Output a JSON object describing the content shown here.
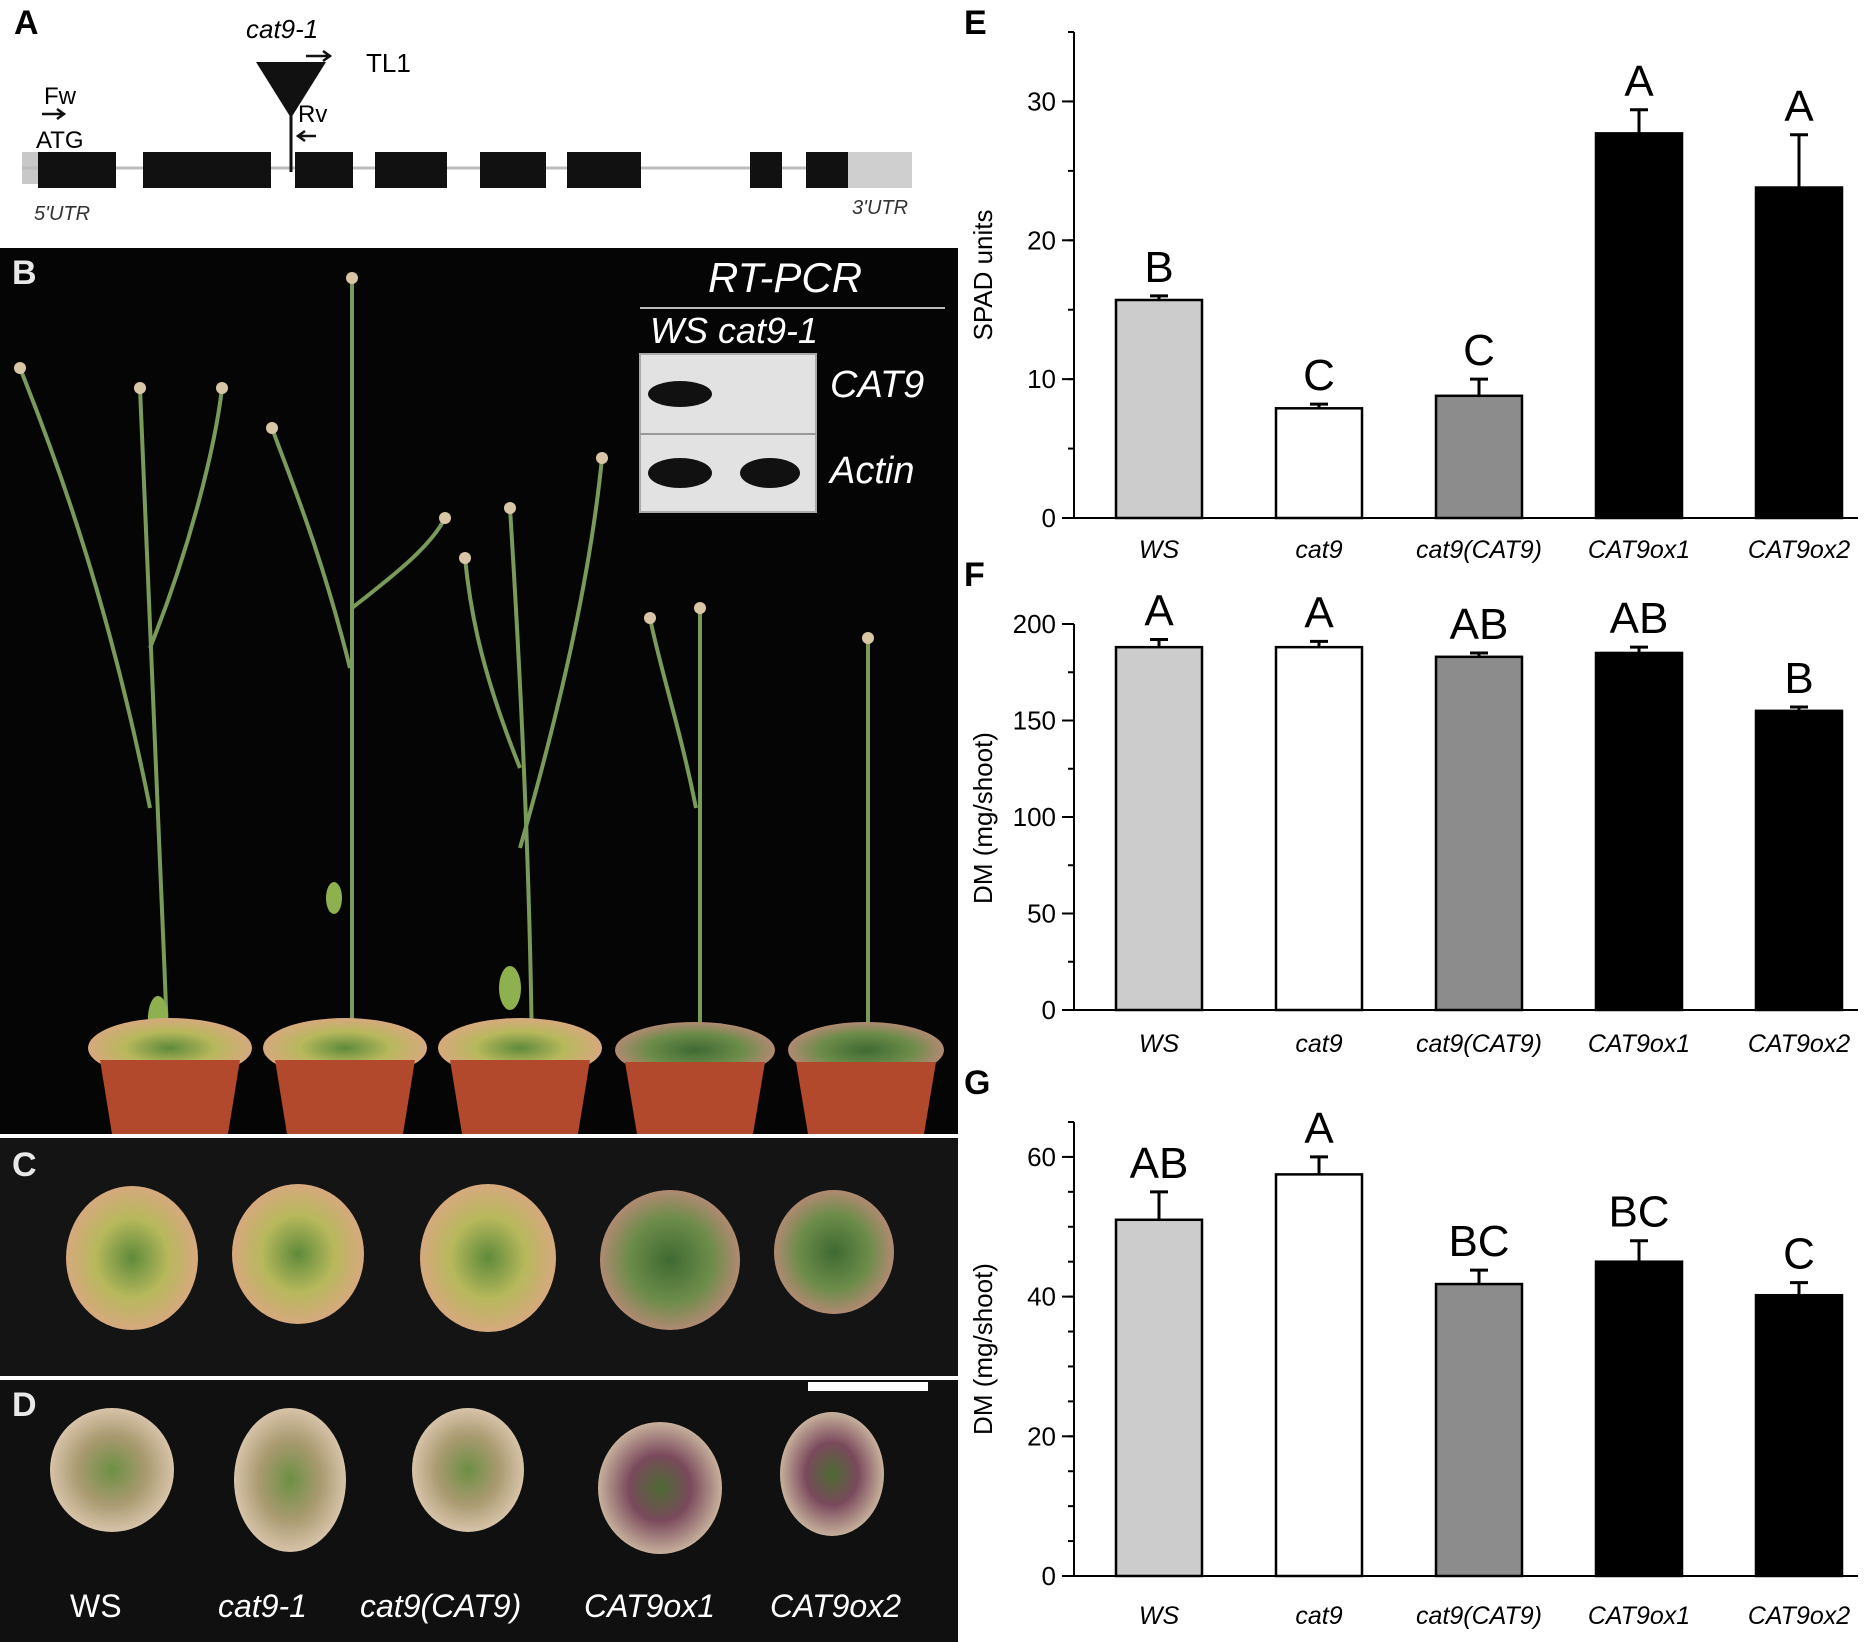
{
  "panels": {
    "A": "A",
    "B": "B",
    "C": "C",
    "D": "D",
    "E": "E",
    "F": "F",
    "G": "G"
  },
  "gene_model": {
    "insertion_label": "cat9-1",
    "tl1_label": "TL1",
    "fw_label": "Fw",
    "atg_label": "ATG",
    "rv_label": "Rv",
    "utr5_label": "5'UTR",
    "utr3_label": "3'UTR"
  },
  "rt_pcr": {
    "title": "RT-PCR",
    "lanes_label": "WS cat9-1",
    "rows": [
      "CAT9",
      "Actin"
    ],
    "bands": [
      [
        1,
        0
      ],
      [
        1,
        1
      ]
    ]
  },
  "genotype_labels": [
    "WS",
    "cat9-1",
    "cat9(CAT9)",
    "CAT9ox1",
    "CAT9ox2"
  ],
  "colors": {
    "WS": "#cccccc",
    "cat9": "#ffffff",
    "cat9(CAT9)": "#8c8c8c",
    "CAT9ox1": "#000000",
    "CAT9ox2": "#000000"
  },
  "chart_data": [
    {
      "panel": "E",
      "type": "bar",
      "categories": [
        "WS",
        "cat9",
        "cat9(CAT9)",
        "CAT9ox1",
        "CAT9ox2"
      ],
      "values": [
        15.7,
        7.9,
        8.8,
        27.7,
        23.8
      ],
      "errors": [
        0.3,
        0.3,
        1.2,
        1.7,
        3.8
      ],
      "significance": [
        "B",
        "C",
        "C",
        "A",
        "A"
      ],
      "ylabel": "SPAD units",
      "ylim": [
        0,
        35
      ],
      "yticks": [
        0,
        10,
        20,
        30
      ],
      "minor_step": 5
    },
    {
      "panel": "F",
      "type": "bar",
      "categories": [
        "WS",
        "cat9",
        "cat9(CAT9)",
        "CAT9ox1",
        "CAT9ox2"
      ],
      "values": [
        188,
        188,
        183,
        185,
        155
      ],
      "errors": [
        4,
        3,
        2,
        3,
        2
      ],
      "significance": [
        "A",
        "A",
        "AB",
        "AB",
        "B"
      ],
      "ylabel": "DM (mg/shoot)",
      "ylim": [
        0,
        200
      ],
      "yticks": [
        0,
        50,
        100,
        150,
        200
      ],
      "minor_step": 25
    },
    {
      "panel": "G",
      "type": "bar",
      "categories": [
        "WS",
        "cat9",
        "cat9(CAT9)",
        "CAT9ox1",
        "CAT9ox2"
      ],
      "values": [
        51,
        57.5,
        41.8,
        45,
        40.2
      ],
      "errors": [
        4,
        2.5,
        2,
        3,
        1.8
      ],
      "significance": [
        "AB",
        "A",
        "BC",
        "BC",
        "C"
      ],
      "ylabel": "DM (mg/shoot)",
      "ylim": [
        0,
        65
      ],
      "yticks": [
        0,
        20,
        40,
        60
      ],
      "minor_step": 5
    }
  ]
}
